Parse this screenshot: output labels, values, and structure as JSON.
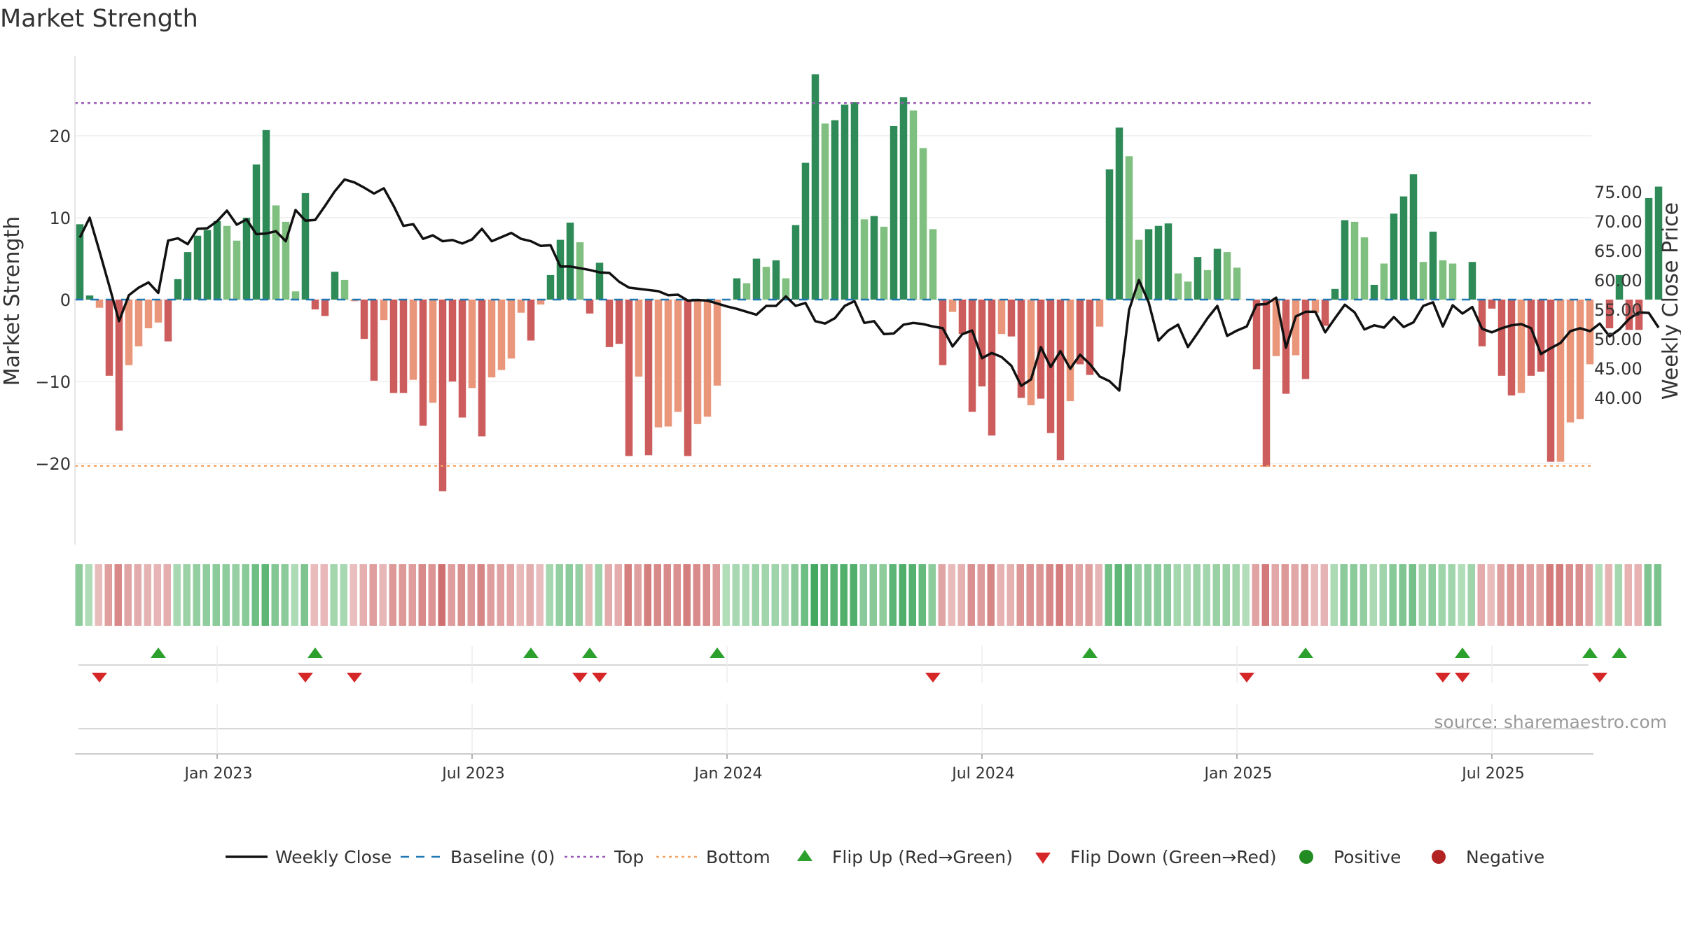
{
  "title": "Market Strength",
  "source": "source: sharemaestro.com",
  "colors": {
    "strong_green": "#2e8b57",
    "light_green": "#7fbf7f",
    "strong_red": "#cd5c5c",
    "light_red": "#e9967a",
    "line": "#111111",
    "baseline": "#1f77b4",
    "top": "#9b59b6",
    "bottom": "#f4a261",
    "flip_up": "#2ca02c",
    "flip_down": "#d62728",
    "positive": "#228b22",
    "negative": "#b22222"
  },
  "chart_data": {
    "type": "bar+line",
    "title": "Market Strength",
    "y_left_label": "Market Strength",
    "y_right_label": "Weekly Close Price",
    "y_left_ticks": [
      "20",
      "10",
      "0",
      "−10",
      "−20"
    ],
    "y_left_tick_values": [
      20,
      10,
      0,
      -10,
      -20
    ],
    "y_right_ticks": [
      "75.00",
      "70.00",
      "65.00",
      "60.00",
      "55.00",
      "50.00",
      "45.00",
      "40.00"
    ],
    "y_right_tick_values": [
      75,
      70,
      65,
      60,
      55,
      50,
      45,
      40
    ],
    "y_left_range": [
      -29.5,
      29.5
    ],
    "y_right_range": [
      37.1,
      79.2
    ],
    "x_ticks": [
      "Jan 2023",
      "Jul 2023",
      "Jan 2024",
      "Jul 2024",
      "Jan 2025",
      "Jul 2025"
    ],
    "x_tick_weeks": [
      14,
      40,
      66,
      92,
      118,
      144
    ],
    "top_threshold": 24,
    "bottom_threshold": -20.3,
    "strength": [
      9.2,
      0.5,
      -1.0,
      -9.3,
      -16.0,
      -8.0,
      -5.7,
      -3.5,
      -2.8,
      -5.1,
      2.5,
      5.8,
      7.8,
      8.5,
      9.6,
      9.0,
      7.2,
      10.0,
      16.5,
      20.7,
      11.5,
      9.5,
      1.0,
      13.0,
      -1.2,
      -2.0,
      3.4,
      2.4,
      -0.2,
      -4.8,
      -9.9,
      -2.5,
      -11.4,
      -11.4,
      -9.8,
      -15.4,
      -12.6,
      -23.4,
      -10.0,
      -14.4,
      -10.8,
      -16.7,
      -9.5,
      -8.6,
      -7.2,
      -1.6,
      -5.0,
      -0.6,
      3.0,
      7.3,
      9.4,
      7.0,
      -1.7,
      4.5,
      -5.8,
      -5.4,
      -19.1,
      -9.4,
      -19.0,
      -15.6,
      -15.5,
      -13.7,
      -19.1,
      -15.2,
      -14.3,
      -10.5,
      0.0,
      2.6,
      2.0,
      5.0,
      4.0,
      4.8,
      2.6,
      9.1,
      16.7,
      27.5,
      21.5,
      21.9,
      23.8,
      24.1,
      9.8,
      10.2,
      8.9,
      21.2,
      24.7,
      23.1,
      18.5,
      8.6,
      -8.0,
      -1.5,
      -4.2,
      -13.7,
      -10.6,
      -16.6,
      -4.2,
      -4.5,
      -12.0,
      -12.9,
      -12.1,
      -16.3,
      -19.6,
      -12.4,
      -7.9,
      -9.2,
      -3.3,
      15.9,
      21.0,
      17.5,
      7.3,
      8.6,
      9.0,
      9.3,
      3.2,
      2.2,
      5.2,
      3.6,
      6.2,
      5.8,
      3.9,
      0.0,
      -8.5,
      -20.4,
      -6.9,
      -11.5,
      -6.8,
      -9.7,
      -1.6,
      -3.2,
      1.3,
      9.7,
      9.5,
      7.6,
      1.8,
      4.4,
      10.5,
      12.6,
      15.3,
      4.6,
      8.3,
      4.8,
      4.4,
      0.0,
      4.6,
      -5.7,
      -1.1,
      -9.3,
      -11.7,
      -11.4,
      -9.3,
      -8.8,
      -19.8,
      -19.8,
      -15.0,
      -14.6,
      -7.9,
      0.0,
      -3.5,
      3.0,
      -3.7,
      -3.7,
      12.4,
      13.8
    ],
    "shade": [
      1,
      1,
      0,
      1,
      1,
      0,
      0,
      0,
      0,
      1,
      1,
      1,
      1,
      1,
      1,
      0,
      0,
      1,
      1,
      1,
      0,
      0,
      0,
      1,
      1,
      1,
      1,
      0,
      0,
      1,
      1,
      0,
      1,
      1,
      0,
      1,
      0,
      1,
      1,
      1,
      0,
      1,
      0,
      0,
      0,
      0,
      1,
      0,
      1,
      1,
      1,
      0,
      1,
      1,
      1,
      1,
      1,
      0,
      1,
      0,
      0,
      0,
      1,
      0,
      0,
      0,
      1,
      1,
      0,
      1,
      0,
      1,
      0,
      1,
      1,
      1,
      0,
      1,
      1,
      1,
      0,
      1,
      0,
      1,
      1,
      0,
      0,
      0,
      1,
      0,
      1,
      1,
      1,
      1,
      0,
      1,
      1,
      0,
      1,
      1,
      1,
      0,
      1,
      1,
      0,
      1,
      1,
      0,
      0,
      1,
      1,
      1,
      0,
      0,
      1,
      0,
      1,
      0,
      0,
      0,
      1,
      1,
      0,
      1,
      0,
      1,
      0,
      1,
      1,
      1,
      0,
      0,
      1,
      0,
      1,
      1,
      1,
      0,
      1,
      0,
      0,
      0,
      1,
      1,
      1,
      1,
      1,
      0,
      1,
      1,
      1,
      0,
      0,
      0,
      0,
      0,
      1,
      1,
      1,
      1,
      1,
      1
    ],
    "close": [
      67.2,
      70.6,
      64.9,
      59.0,
      53.0,
      57.4,
      58.7,
      59.6,
      57.8,
      66.7,
      67.1,
      66.1,
      68.7,
      68.8,
      70.0,
      71.8,
      69.4,
      70.3,
      67.8,
      67.9,
      68.3,
      66.6,
      71.9,
      70.1,
      70.2,
      72.6,
      75.1,
      77.1,
      76.6,
      75.7,
      74.7,
      75.6,
      72.6,
      69.2,
      69.5,
      67.0,
      67.6,
      66.6,
      66.8,
      66.2,
      66.9,
      68.7,
      66.6,
      67.3,
      68.0,
      67.0,
      66.6,
      65.8,
      65.9,
      62.3,
      62.3,
      62.0,
      61.7,
      61.3,
      61.2,
      59.7,
      58.7,
      58.5,
      58.3,
      58.1,
      57.4,
      57.5,
      56.5,
      56.6,
      56.5,
      56.0,
      55.5,
      55.1,
      54.6,
      54.1,
      55.6,
      55.6,
      57.2,
      55.6,
      56.1,
      53.0,
      52.6,
      53.5,
      55.6,
      56.4,
      52.7,
      53.0,
      50.8,
      50.9,
      52.4,
      52.7,
      52.5,
      52.1,
      51.8,
      48.7,
      50.8,
      51.4,
      46.7,
      47.6,
      46.9,
      45.4,
      42.0,
      43.1,
      48.6,
      45.2,
      47.9,
      44.9,
      47.3,
      45.7,
      43.6,
      42.8,
      41.2,
      54.9,
      60.0,
      56.2,
      49.7,
      51.4,
      52.4,
      48.6,
      51.0,
      53.5,
      55.6,
      50.5,
      51.4,
      52.1,
      55.8,
      55.9,
      57.0,
      48.5,
      53.8,
      54.6,
      54.6,
      51.1,
      53.5,
      55.8,
      54.5,
      51.6,
      52.3,
      51.9,
      53.7,
      52.0,
      52.8,
      55.6,
      56.2,
      52.1,
      55.7,
      54.3,
      55.4,
      51.7,
      51.1,
      51.8,
      52.3,
      52.5,
      51.8,
      47.4,
      48.4,
      49.3,
      51.3,
      51.8,
      51.3,
      52.6,
      50.4,
      51.6,
      53.4,
      54.5,
      54.4,
      51.9
    ],
    "flip_up_weeks": [
      8,
      24,
      46,
      52,
      65,
      103,
      125,
      141,
      154,
      157
    ],
    "flip_down_weeks": [
      2,
      23,
      28,
      51,
      53,
      87,
      119,
      139,
      141,
      155
    ]
  },
  "legend": [
    {
      "label": "Weekly Close",
      "kind": "line",
      "color": "#111111"
    },
    {
      "label": "Baseline (0)",
      "kind": "dash",
      "color": "#1f77b4"
    },
    {
      "label": "Top",
      "kind": "dot",
      "color": "#9b59b6"
    },
    {
      "label": "Bottom",
      "kind": "dot",
      "color": "#f4a261"
    },
    {
      "label": "Flip Up (Red→Green)",
      "kind": "tri-up",
      "color": "#2ca02c"
    },
    {
      "label": "Flip Down (Green→Red)",
      "kind": "tri-down",
      "color": "#d62728"
    },
    {
      "label": "Positive",
      "kind": "circle",
      "color": "#228b22"
    },
    {
      "label": "Negative",
      "kind": "circle",
      "color": "#b22222"
    }
  ]
}
